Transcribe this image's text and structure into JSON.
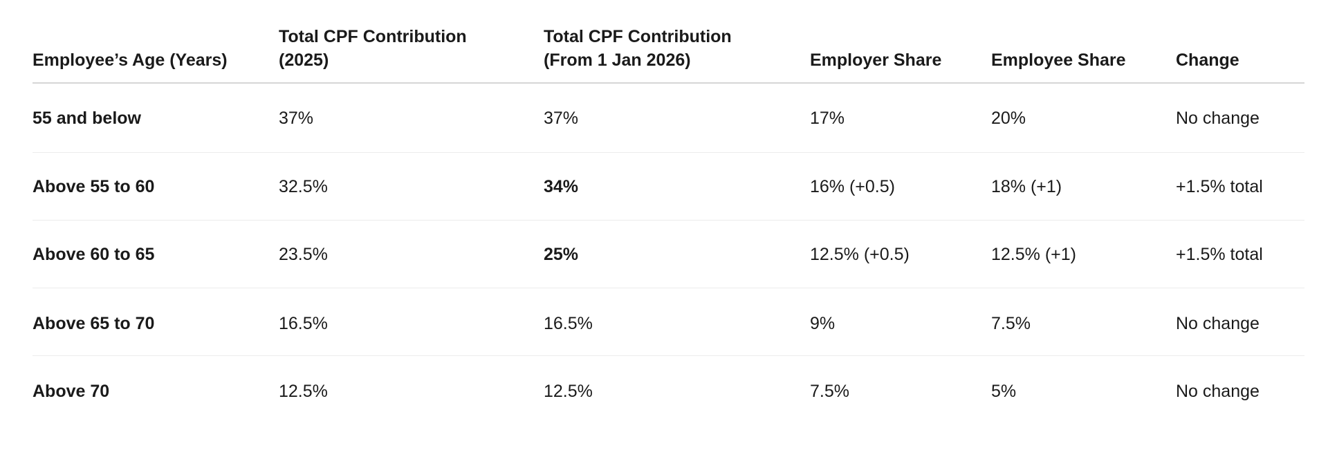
{
  "table": {
    "headers": [
      "Employee’s Age (Years)",
      "Total CPF Contribution (2025)",
      "Total CPF Contribution (From 1 Jan 2026)",
      "Employer Share",
      "Employee Share",
      "Change"
    ],
    "rows": [
      [
        "55 and below",
        "37%",
        "37%",
        "17%",
        "20%",
        "No change"
      ],
      [
        "Above 55 to 60",
        "32.5%",
        "34%",
        "16% (+0.5)",
        "18% (+1)",
        "+1.5% total"
      ],
      [
        "Above 60 to 65",
        "23.5%",
        "25%",
        "12.5% (+0.5)",
        "12.5% (+1)",
        "+1.5% total"
      ],
      [
        "Above 65 to 70",
        "16.5%",
        "16.5%",
        "9%",
        "7.5%",
        "No change"
      ],
      [
        "Above 70",
        "12.5%",
        "12.5%",
        "7.5%",
        "5%",
        "No change"
      ]
    ]
  }
}
